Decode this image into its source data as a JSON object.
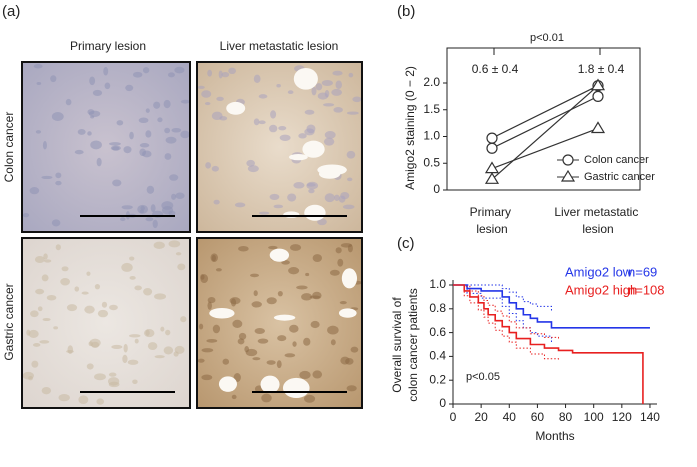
{
  "panel_a": {
    "label": "(a)",
    "columns": [
      "Primary lesion",
      "Liver metastatic lesion"
    ],
    "rows": [
      "Colon cancer",
      "Gastric cancer"
    ]
  },
  "chart_data": [
    {
      "type": "paired",
      "label": "(b)",
      "ylabel": "Amigo2 staining (0 − 2)",
      "categories": [
        "Primary lesion",
        "Liver metastatic lesion"
      ],
      "ylim": [
        0,
        2
      ],
      "yticks": [
        0,
        0.5,
        {
          "value": 1,
          "label": "1.0"
        },
        1.5,
        {
          "value": 2,
          "label": "2.0"
        }
      ],
      "group_labels": [
        "0.6 ± 0.4",
        "1.8 ± 0.4"
      ],
      "comparison": "p<0.01",
      "legend": "lower right",
      "series": [
        {
          "name": "Colon cancer",
          "marker": "circle",
          "color": "#333333",
          "values": [
            [
              0.97,
              1.95
            ],
            [
              0.78,
              1.75
            ]
          ]
        },
        {
          "name": "Gastric cancer",
          "marker": "triangle",
          "color": "#333333",
          "values": [
            [
              0.4,
              1.15
            ],
            [
              0.2,
              1.95
            ]
          ]
        }
      ]
    },
    {
      "type": "survival",
      "label": "(c)",
      "xlabel": "Months",
      "ylabel": [
        "Overall survival of",
        "colon cancer patients"
      ],
      "xlim": [
        0,
        145
      ],
      "xticks": [
        0,
        20,
        40,
        60,
        80,
        100,
        120,
        140
      ],
      "ylim": [
        0,
        1
      ],
      "yticks": [
        0,
        0.2,
        0.4,
        0.6,
        0.8,
        {
          "value": 1,
          "label": "1.0"
        }
      ],
      "annotation": "p<0.05",
      "legend": "upper right",
      "series": [
        {
          "name": "Amigo2 low",
          "n": "n=69",
          "color": "#2436e8",
          "x": [
            0,
            10,
            20,
            35,
            40,
            45,
            50,
            55,
            60,
            70,
            140
          ],
          "values": [
            1,
            0.97,
            0.95,
            0.9,
            0.85,
            0.8,
            0.75,
            0.72,
            0.69,
            0.64,
            0.64
          ],
          "lower": [
            1,
            0.93,
            0.89,
            0.82,
            0.76,
            0.7,
            0.64,
            0.6,
            0.57,
            0.52,
            null
          ],
          "upper": [
            1,
            1,
            1,
            0.97,
            0.94,
            0.9,
            0.86,
            0.84,
            0.82,
            0.77,
            null
          ]
        },
        {
          "name": "Amigo2 high",
          "n": "n=108",
          "color": "#e82020",
          "x": [
            0,
            3,
            8,
            12,
            18,
            22,
            25,
            30,
            35,
            40,
            45,
            55,
            65,
            75,
            85,
            135,
            135
          ],
          "values": [
            1,
            1,
            0.95,
            0.9,
            0.85,
            0.8,
            0.75,
            0.7,
            0.65,
            0.6,
            0.55,
            0.5,
            0.47,
            0.45,
            0.43,
            0.43,
            0
          ],
          "lower": [
            1,
            1,
            0.91,
            0.85,
            0.79,
            0.73,
            0.68,
            0.62,
            0.57,
            0.52,
            0.47,
            0.42,
            0.38,
            0.36,
            null,
            null,
            null
          ],
          "upper": [
            1,
            1,
            0.99,
            0.95,
            0.91,
            0.87,
            0.83,
            0.78,
            0.74,
            0.69,
            0.64,
            0.59,
            0.56,
            0.54,
            null,
            null,
            null
          ]
        }
      ]
    }
  ]
}
